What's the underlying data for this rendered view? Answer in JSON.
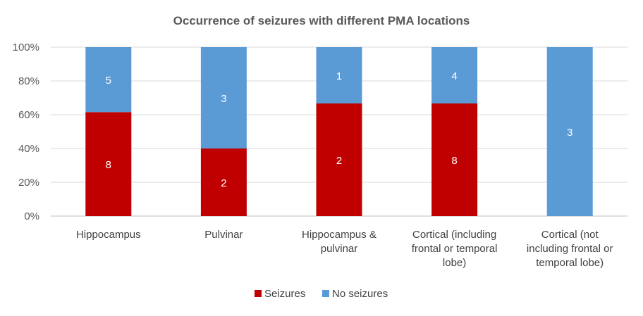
{
  "chart_data": {
    "type": "bar",
    "stacked": true,
    "normalized": true,
    "title": "Occurrence of seizures with different PMA locations",
    "categories": [
      [
        "Hippocampus"
      ],
      [
        "Pulvinar"
      ],
      [
        "Hippocampus &",
        "pulvinar"
      ],
      [
        "Cortical (including",
        "frontal or temporal",
        "lobe)"
      ],
      [
        "Cortical (not",
        "including frontal or",
        "temporal lobe)"
      ]
    ],
    "series": [
      {
        "name": "Seizures",
        "color": "#C00000",
        "values": [
          8,
          2,
          2,
          8,
          0
        ]
      },
      {
        "name": "No seizures",
        "color": "#5B9BD5",
        "values": [
          5,
          3,
          1,
          4,
          3
        ]
      }
    ],
    "yticks": [
      "0%",
      "20%",
      "40%",
      "60%",
      "80%",
      "100%"
    ],
    "ylim": [
      0,
      1
    ],
    "grid": true,
    "legend_position": "bottom"
  }
}
